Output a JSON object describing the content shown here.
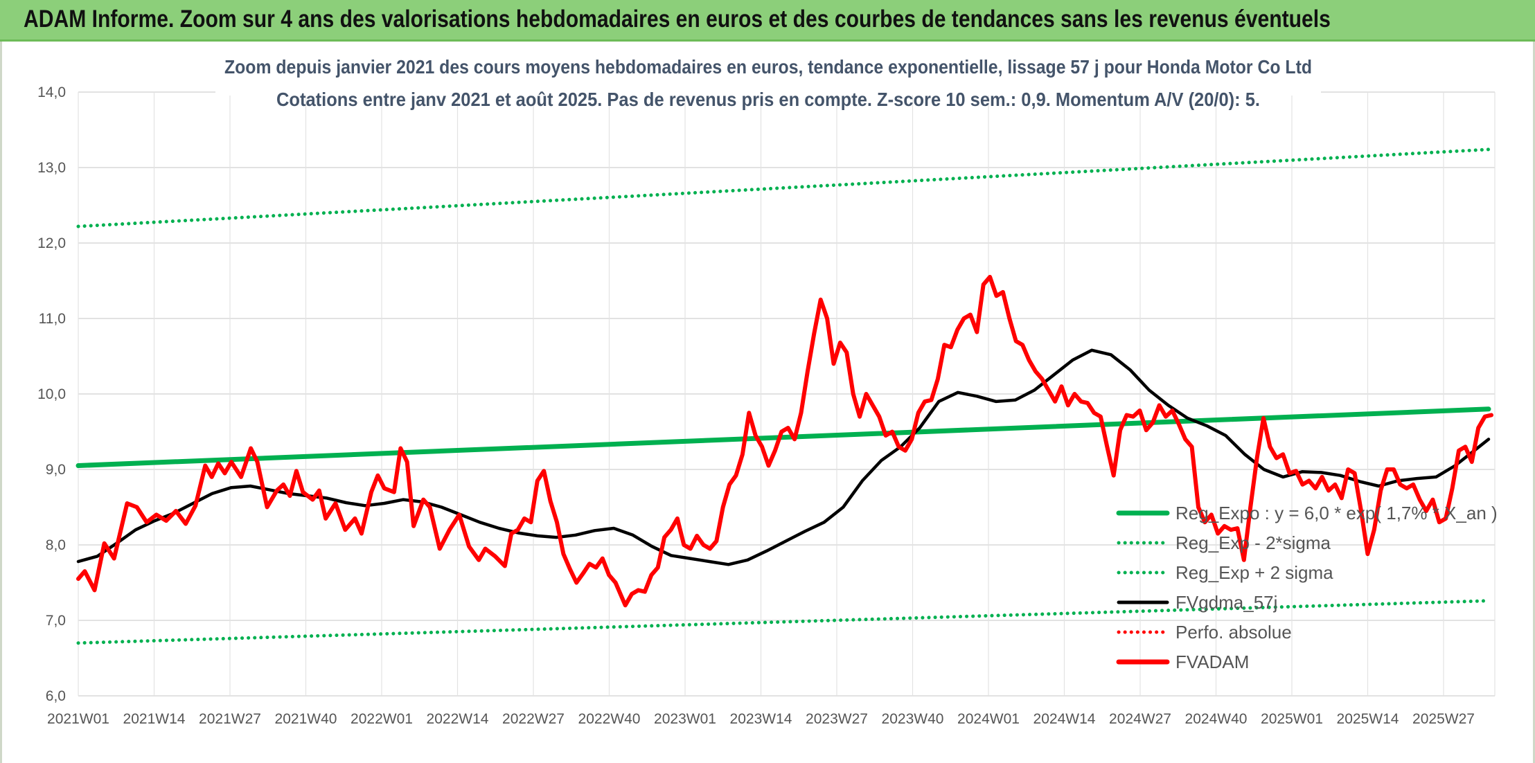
{
  "header": {
    "title": "ADAM Informe. Zoom sur 4 ans des valorisations hebdomadaires en euros et des courbes de tendances sans les revenus éventuels"
  },
  "chart_data": {
    "type": "line",
    "title_line1": "Zoom depuis janvier 2021 des cours moyens hebdomadaires en euros, tendance exponentielle, lissage 57 j pour Honda Motor Co Ltd",
    "title_line2": "Cotations entre janv 2021 et août 2025. Pas de revenus pris en compte. Z-score 10 sem.: 0,9. Momentum A/V (20/0): 5.",
    "ylim": [
      6.0,
      14.0
    ],
    "y_ticks": [
      "6,0",
      "7,0",
      "8,0",
      "9,0",
      "10,0",
      "11,0",
      "12,0",
      "13,0",
      "14,0"
    ],
    "x_ticks": [
      "2021W01",
      "2021W14",
      "2021W27",
      "2021W40",
      "2022W01",
      "2022W14",
      "2022W27",
      "2022W40",
      "2023W01",
      "2023W14",
      "2023W27",
      "2023W40",
      "2024W01",
      "2024W14",
      "2024W27",
      "2024W40",
      "2025W01",
      "2025W14",
      "2025W27"
    ],
    "legend_position": "bottom-right",
    "grid": true,
    "colors": {
      "green": "#00b050",
      "black": "#000000",
      "red": "#ff0000"
    },
    "series": [
      {
        "name": "Reg_Expo : y = 6,0 * exp( 1,7% * X_an )",
        "style": "solid",
        "color": "#00b050",
        "points": [
          [
            0,
            9.05
          ],
          [
            242,
            9.8
          ]
        ]
      },
      {
        "name": "Reg_Exp - 2*sigma",
        "style": "dotted",
        "color": "#00b050",
        "points": [
          [
            0,
            6.7
          ],
          [
            242,
            7.26
          ]
        ]
      },
      {
        "name": "Reg_Exp + 2 sigma",
        "style": "dotted",
        "color": "#00b050",
        "points": [
          [
            0,
            12.22
          ],
          [
            242,
            13.24
          ]
        ]
      },
      {
        "name": "FVgdma_57j",
        "style": "solid",
        "color": "#000000",
        "points": [
          [
            0,
            7.78
          ],
          [
            4,
            7.85
          ],
          [
            8,
            8.02
          ],
          [
            12,
            8.2
          ],
          [
            16,
            8.32
          ],
          [
            20,
            8.42
          ],
          [
            24,
            8.55
          ],
          [
            28,
            8.68
          ],
          [
            32,
            8.76
          ],
          [
            36,
            8.78
          ],
          [
            40,
            8.73
          ],
          [
            44,
            8.68
          ],
          [
            48,
            8.65
          ],
          [
            52,
            8.62
          ],
          [
            56,
            8.56
          ],
          [
            60,
            8.52
          ],
          [
            64,
            8.55
          ],
          [
            68,
            8.6
          ],
          [
            72,
            8.57
          ],
          [
            76,
            8.5
          ],
          [
            80,
            8.4
          ],
          [
            84,
            8.3
          ],
          [
            88,
            8.22
          ],
          [
            92,
            8.16
          ],
          [
            96,
            8.12
          ],
          [
            100,
            8.1
          ],
          [
            104,
            8.13
          ],
          [
            108,
            8.19
          ],
          [
            112,
            8.22
          ],
          [
            116,
            8.13
          ],
          [
            120,
            7.98
          ],
          [
            124,
            7.86
          ],
          [
            128,
            7.82
          ],
          [
            132,
            7.78
          ],
          [
            136,
            7.74
          ],
          [
            140,
            7.8
          ],
          [
            144,
            7.92
          ],
          [
            148,
            8.05
          ],
          [
            152,
            8.18
          ],
          [
            156,
            8.3
          ],
          [
            160,
            8.5
          ],
          [
            164,
            8.85
          ],
          [
            168,
            9.12
          ],
          [
            172,
            9.3
          ],
          [
            176,
            9.55
          ],
          [
            180,
            9.9
          ],
          [
            184,
            10.02
          ],
          [
            188,
            9.97
          ],
          [
            192,
            9.9
          ],
          [
            196,
            9.92
          ],
          [
            200,
            10.05
          ],
          [
            204,
            10.25
          ],
          [
            208,
            10.45
          ],
          [
            212,
            10.58
          ],
          [
            216,
            10.52
          ],
          [
            220,
            10.32
          ],
          [
            224,
            10.05
          ],
          [
            228,
            9.85
          ],
          [
            232,
            9.68
          ],
          [
            236,
            9.58
          ],
          [
            240,
            9.45
          ],
          [
            244,
            9.2
          ],
          [
            248,
            9.0
          ],
          [
            252,
            8.9
          ],
          [
            256,
            8.97
          ],
          [
            260,
            8.96
          ],
          [
            264,
            8.92
          ],
          [
            268,
            8.84
          ],
          [
            272,
            8.78
          ],
          [
            276,
            8.85
          ],
          [
            280,
            8.88
          ],
          [
            284,
            8.9
          ],
          [
            288,
            9.05
          ],
          [
            292,
            9.25
          ],
          [
            295,
            9.4
          ]
        ]
      },
      {
        "name": "Perfo. absolue",
        "style": "dotted",
        "color": "#ff0000",
        "points": []
      },
      {
        "name": "FVADAM",
        "style": "solid",
        "color": "#ff0000",
        "points": [
          [
            0,
            7.55
          ],
          [
            2,
            7.65
          ],
          [
            5,
            7.4
          ],
          [
            8,
            8.02
          ],
          [
            11,
            7.82
          ],
          [
            15,
            8.55
          ],
          [
            18,
            8.5
          ],
          [
            21,
            8.3
          ],
          [
            24,
            8.4
          ],
          [
            27,
            8.32
          ],
          [
            30,
            8.45
          ],
          [
            33,
            8.28
          ],
          [
            36,
            8.52
          ],
          [
            39,
            9.05
          ],
          [
            41,
            8.9
          ],
          [
            43,
            9.08
          ],
          [
            45,
            8.95
          ],
          [
            47,
            9.1
          ],
          [
            50,
            8.9
          ],
          [
            53,
            9.28
          ],
          [
            55,
            9.1
          ],
          [
            58,
            8.5
          ],
          [
            61,
            8.72
          ],
          [
            63,
            8.8
          ],
          [
            65,
            8.65
          ],
          [
            67,
            8.98
          ],
          [
            69,
            8.7
          ],
          [
            72,
            8.6
          ],
          [
            74,
            8.72
          ],
          [
            76,
            8.35
          ],
          [
            79,
            8.55
          ],
          [
            82,
            8.2
          ],
          [
            85,
            8.35
          ],
          [
            87,
            8.15
          ],
          [
            90,
            8.7
          ],
          [
            92,
            8.92
          ],
          [
            94,
            8.75
          ],
          [
            97,
            8.7
          ],
          [
            99,
            9.28
          ],
          [
            101,
            9.1
          ],
          [
            103,
            8.25
          ],
          [
            106,
            8.6
          ],
          [
            108,
            8.5
          ],
          [
            111,
            7.95
          ],
          [
            114,
            8.2
          ],
          [
            117,
            8.4
          ],
          [
            120,
            7.98
          ],
          [
            123,
            7.8
          ],
          [
            125,
            7.95
          ],
          [
            128,
            7.85
          ],
          [
            131,
            7.72
          ],
          [
            133,
            8.15
          ],
          [
            135,
            8.2
          ],
          [
            137,
            8.35
          ],
          [
            139,
            8.3
          ],
          [
            141,
            8.85
          ],
          [
            143,
            8.98
          ],
          [
            145,
            8.58
          ],
          [
            147,
            8.3
          ],
          [
            149,
            7.88
          ],
          [
            151,
            7.68
          ],
          [
            153,
            7.5
          ],
          [
            155,
            7.62
          ],
          [
            157,
            7.75
          ],
          [
            159,
            7.7
          ],
          [
            161,
            7.82
          ],
          [
            163,
            7.6
          ],
          [
            165,
            7.5
          ],
          [
            167,
            7.3
          ],
          [
            168,
            7.2
          ],
          [
            170,
            7.35
          ],
          [
            172,
            7.4
          ],
          [
            174,
            7.38
          ],
          [
            176,
            7.6
          ],
          [
            178,
            7.7
          ],
          [
            180,
            8.1
          ],
          [
            182,
            8.2
          ],
          [
            184,
            8.35
          ],
          [
            186,
            8.0
          ],
          [
            188,
            7.95
          ],
          [
            190,
            8.12
          ],
          [
            192,
            8.0
          ],
          [
            194,
            7.95
          ],
          [
            196,
            8.05
          ],
          [
            198,
            8.5
          ],
          [
            200,
            8.8
          ],
          [
            202,
            8.92
          ],
          [
            204,
            9.2
          ],
          [
            206,
            9.75
          ],
          [
            208,
            9.45
          ],
          [
            210,
            9.3
          ],
          [
            212,
            9.05
          ],
          [
            214,
            9.25
          ],
          [
            216,
            9.5
          ],
          [
            218,
            9.55
          ],
          [
            220,
            9.4
          ],
          [
            222,
            9.75
          ],
          [
            224,
            10.3
          ],
          [
            226,
            10.8
          ],
          [
            228,
            11.25
          ],
          [
            230,
            11.0
          ],
          [
            232,
            10.4
          ],
          [
            234,
            10.68
          ],
          [
            236,
            10.55
          ],
          [
            238,
            10.0
          ],
          [
            240,
            9.7
          ],
          [
            242,
            10.0
          ],
          [
            244,
            9.85
          ],
          [
            246,
            9.7
          ],
          [
            248,
            9.45
          ],
          [
            250,
            9.5
          ],
          [
            252,
            9.3
          ],
          [
            254,
            9.25
          ],
          [
            256,
            9.4
          ],
          [
            258,
            9.75
          ],
          [
            260,
            9.9
          ],
          [
            262,
            9.92
          ],
          [
            264,
            10.2
          ],
          [
            266,
            10.65
          ],
          [
            268,
            10.62
          ],
          [
            270,
            10.85
          ],
          [
            272,
            11.0
          ],
          [
            274,
            11.05
          ],
          [
            276,
            10.82
          ],
          [
            278,
            11.45
          ],
          [
            280,
            11.55
          ],
          [
            282,
            11.3
          ],
          [
            284,
            11.35
          ],
          [
            286,
            11.0
          ],
          [
            288,
            10.7
          ],
          [
            290,
            10.65
          ],
          [
            292,
            10.45
          ],
          [
            294,
            10.3
          ],
          [
            296,
            10.2
          ],
          [
            298,
            10.05
          ],
          [
            300,
            9.9
          ],
          [
            302,
            10.1
          ],
          [
            304,
            9.85
          ],
          [
            306,
            10.0
          ],
          [
            308,
            9.9
          ],
          [
            310,
            9.88
          ],
          [
            312,
            9.75
          ],
          [
            314,
            9.7
          ],
          [
            316,
            9.3
          ],
          [
            318,
            8.92
          ],
          [
            320,
            9.52
          ],
          [
            322,
            9.72
          ],
          [
            324,
            9.7
          ],
          [
            326,
            9.78
          ],
          [
            328,
            9.52
          ],
          [
            330,
            9.62
          ],
          [
            332,
            9.85
          ],
          [
            334,
            9.7
          ],
          [
            336,
            9.78
          ],
          [
            338,
            9.6
          ],
          [
            340,
            9.4
          ],
          [
            342,
            9.3
          ],
          [
            344,
            8.5
          ],
          [
            346,
            8.3
          ],
          [
            348,
            8.4
          ],
          [
            350,
            8.15
          ],
          [
            352,
            8.25
          ],
          [
            354,
            8.2
          ],
          [
            356,
            8.22
          ],
          [
            358,
            7.8
          ],
          [
            360,
            8.5
          ],
          [
            362,
            9.15
          ],
          [
            364,
            9.68
          ],
          [
            366,
            9.3
          ],
          [
            368,
            9.15
          ],
          [
            370,
            9.2
          ],
          [
            372,
            8.95
          ],
          [
            374,
            8.98
          ],
          [
            376,
            8.8
          ],
          [
            378,
            8.85
          ],
          [
            380,
            8.75
          ],
          [
            382,
            8.9
          ],
          [
            384,
            8.72
          ],
          [
            386,
            8.8
          ],
          [
            388,
            8.62
          ],
          [
            390,
            9.0
          ],
          [
            392,
            8.95
          ],
          [
            394,
            8.45
          ],
          [
            396,
            7.88
          ],
          [
            398,
            8.2
          ],
          [
            400,
            8.72
          ],
          [
            402,
            9.0
          ],
          [
            404,
            9.0
          ],
          [
            406,
            8.8
          ],
          [
            408,
            8.75
          ],
          [
            410,
            8.8
          ],
          [
            412,
            8.6
          ],
          [
            414,
            8.45
          ],
          [
            416,
            8.6
          ],
          [
            418,
            8.3
          ],
          [
            420,
            8.35
          ],
          [
            422,
            8.75
          ],
          [
            424,
            9.25
          ],
          [
            426,
            9.3
          ],
          [
            428,
            9.1
          ],
          [
            430,
            9.55
          ],
          [
            432,
            9.7
          ],
          [
            434,
            9.72
          ]
        ]
      }
    ]
  }
}
